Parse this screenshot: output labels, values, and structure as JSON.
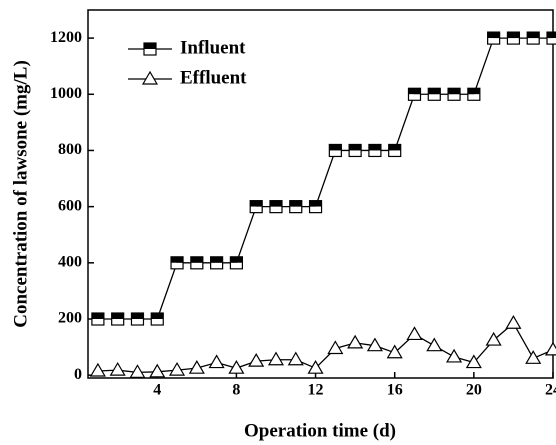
{
  "chart_data": {
    "type": "line",
    "x_label": "Operation time (d)",
    "y_label": "Concentration of lawsone (mg/L)",
    "x": [
      1,
      2,
      3,
      4,
      5,
      6,
      7,
      8,
      9,
      10,
      11,
      12,
      13,
      14,
      15,
      16,
      17,
      18,
      19,
      20,
      21,
      22,
      23,
      24
    ],
    "series": [
      {
        "name": "Influent",
        "color": "#000000",
        "marker": "square",
        "values": [
          200,
          200,
          200,
          200,
          400,
          400,
          400,
          400,
          600,
          600,
          600,
          600,
          800,
          800,
          800,
          800,
          1000,
          1000,
          1000,
          1000,
          1200,
          1200,
          1200,
          1200
        ]
      },
      {
        "name": "Effluent",
        "color": "#000000",
        "marker": "triangle",
        "values": [
          15,
          18,
          10,
          12,
          18,
          25,
          45,
          25,
          50,
          55,
          55,
          25,
          95,
          115,
          105,
          80,
          145,
          105,
          65,
          45,
          125,
          185,
          60,
          90
        ]
      }
    ],
    "xlim": [
      0.5,
      24
    ],
    "ylim": [
      -10,
      1300
    ],
    "xticks": [
      4,
      8,
      12,
      16,
      20,
      24
    ],
    "yticks": [
      0,
      200,
      400,
      600,
      800,
      1000,
      1200
    ],
    "legend": "upper left"
  }
}
